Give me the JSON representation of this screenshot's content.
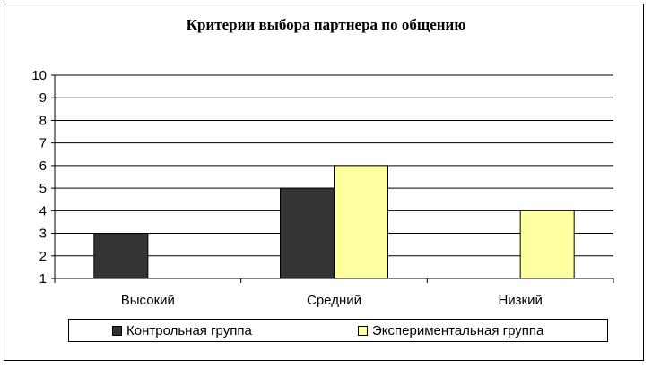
{
  "chart_data": {
    "type": "bar",
    "title": "Критерии выбора партнера по общению",
    "categories": [
      "Высокий",
      "Средний",
      "Низкий"
    ],
    "series": [
      {
        "name": "Контрольная группа",
        "values": [
          3,
          5,
          null
        ],
        "color": "#333333"
      },
      {
        "name": "Экспериментальная группа",
        "values": [
          null,
          6,
          4
        ],
        "color": "#ffffa0"
      }
    ],
    "ylim": [
      1,
      10
    ],
    "yticks": [
      "1",
      "2",
      "3",
      "4",
      "5",
      "6",
      "7",
      "8",
      "9",
      "10"
    ],
    "grid": true,
    "legend_position": "bottom"
  }
}
